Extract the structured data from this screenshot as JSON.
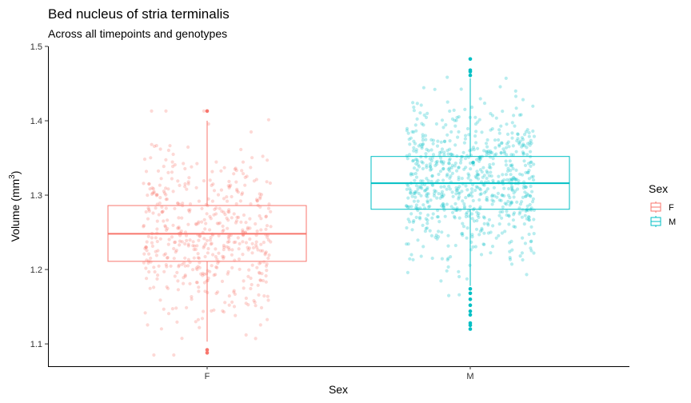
{
  "chart_data": {
    "type": "box",
    "title": "Bed nucleus of stria terminalis",
    "subtitle": "Across all timepoints and genotypes",
    "xlabel": "Sex",
    "ylabel_main": "Volume (mm",
    "ylabel_sup": "3",
    "ylabel_close": ")",
    "ylim": [
      1.07,
      1.5
    ],
    "yticks": [
      "1.1",
      "1.2",
      "1.3",
      "1.4",
      "1.5"
    ],
    "categories": [
      "F",
      "M"
    ],
    "legend": {
      "title": "Sex",
      "position": "right",
      "entries": [
        "F",
        "M"
      ]
    },
    "colors": {
      "F": "#F8766D",
      "M": "#00BFC4"
    },
    "boxes": [
      {
        "name": "F",
        "q1": 1.211,
        "median": 1.248,
        "q3": 1.286,
        "whisker_low": 1.103,
        "whisker_high": 1.4,
        "outliers": [
          1.413,
          1.088,
          1.092
        ],
        "jitter": {
          "count": 520,
          "mean": 1.248,
          "sd": 0.058,
          "min": 1.085,
          "max": 1.413
        }
      },
      {
        "name": "M",
        "q1": 1.281,
        "median": 1.316,
        "q3": 1.352,
        "whisker_low": 1.178,
        "whisker_high": 1.457,
        "outliers": [
          1.483,
          1.468,
          1.466,
          1.461,
          1.174,
          1.168,
          1.16,
          1.152,
          1.144,
          1.139,
          1.128,
          1.125,
          1.12
        ],
        "jitter": {
          "count": 760,
          "mean": 1.316,
          "sd": 0.053,
          "min": 1.118,
          "max": 1.483
        }
      }
    ]
  }
}
